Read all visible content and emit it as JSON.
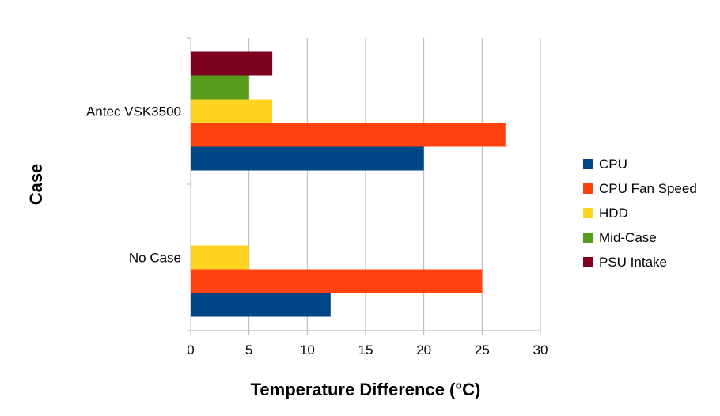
{
  "chart_data": {
    "type": "bar",
    "orientation": "horizontal",
    "title": "",
    "xlabel": "Temperature Difference (°C)",
    "ylabel": "Case",
    "xlim": [
      0,
      30
    ],
    "xticks": [
      0,
      5,
      10,
      15,
      20,
      25,
      30
    ],
    "grid": true,
    "legend_position": "right",
    "categories": [
      "Antec VSK3500",
      "No Case"
    ],
    "series": [
      {
        "name": "CPU",
        "color": "#004586",
        "values": [
          20,
          12
        ]
      },
      {
        "name": "CPU Fan Speed",
        "color": "#ff420e",
        "values": [
          27,
          25
        ]
      },
      {
        "name": "HDD",
        "color": "#ffd320",
        "values": [
          7,
          5
        ]
      },
      {
        "name": "Mid-Case",
        "color": "#579d1c",
        "values": [
          5,
          null
        ]
      },
      {
        "name": "PSU Intake",
        "color": "#7e0021",
        "values": [
          7,
          null
        ]
      }
    ]
  }
}
